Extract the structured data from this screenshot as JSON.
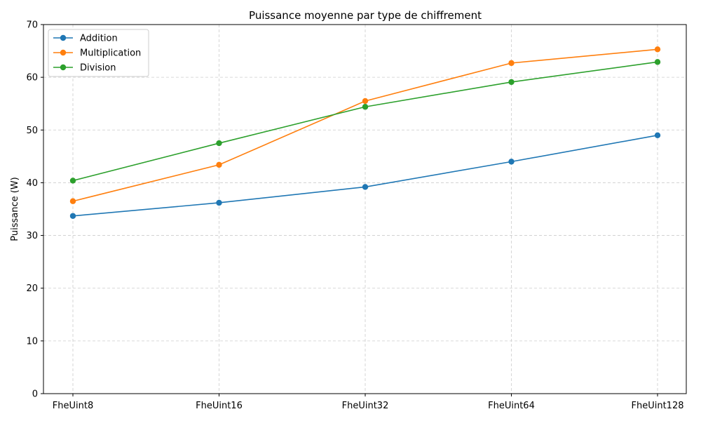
{
  "chart_data": {
    "type": "line",
    "title": "Puissance moyenne par type de chiffrement",
    "xlabel": "",
    "ylabel": "Puissance (W)",
    "categories": [
      "FheUint8",
      "FheUint16",
      "FheUint32",
      "FheUint64",
      "FheUint128"
    ],
    "ylim": [
      0,
      70
    ],
    "yticks": [
      0,
      10,
      20,
      30,
      40,
      50,
      60,
      70
    ],
    "grid": true,
    "legend_position": "top-left",
    "series": [
      {
        "name": "Addition",
        "color": "#1f77b4",
        "values": [
          33.7,
          36.2,
          39.2,
          44.0,
          49.0
        ]
      },
      {
        "name": "Multiplication",
        "color": "#ff7f0e",
        "values": [
          36.5,
          43.4,
          55.5,
          62.7,
          65.3
        ]
      },
      {
        "name": "Division",
        "color": "#2ca02c",
        "values": [
          40.4,
          47.5,
          54.4,
          59.1,
          62.9
        ]
      }
    ]
  }
}
